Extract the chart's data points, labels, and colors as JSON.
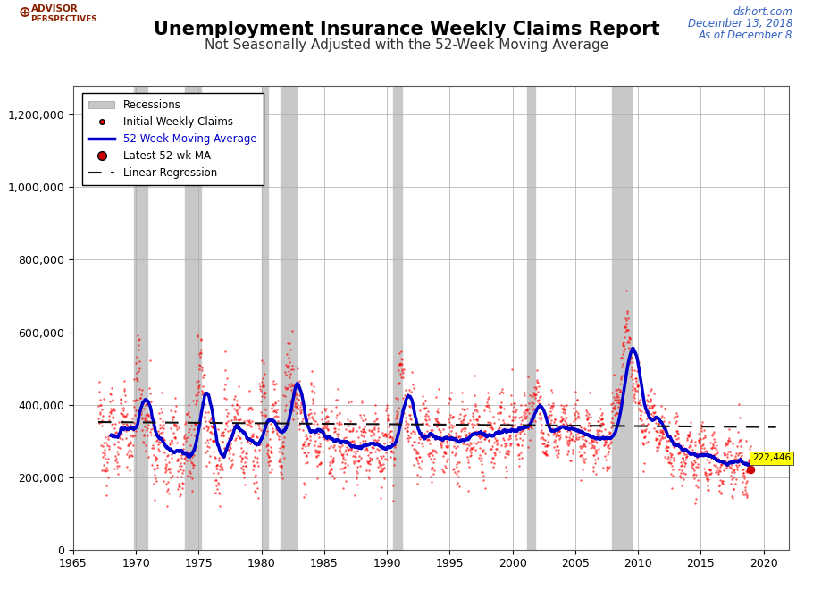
{
  "title": "Unemployment Insurance Weekly Claims Report",
  "subtitle": "Not Seasonally Adjusted with the 52-Week Moving Average",
  "top_right_line1": "dshort.com",
  "top_right_line2": "December 13, 2018",
  "top_right_line3": "As of December 8",
  "xlim": [
    1965,
    2022
  ],
  "ylim": [
    0,
    1280000
  ],
  "yticks": [
    0,
    200000,
    400000,
    600000,
    800000,
    1000000,
    1200000
  ],
  "ytick_labels": [
    "0",
    "200,000",
    "400,000",
    "600,000",
    "800,000",
    "1,000,000",
    "1,200,000"
  ],
  "xticks": [
    1965,
    1970,
    1975,
    1980,
    1985,
    1990,
    1995,
    2000,
    2005,
    2010,
    2015,
    2020
  ],
  "recession_bands": [
    [
      1969.83,
      1970.92
    ],
    [
      1973.92,
      1975.17
    ],
    [
      1980.0,
      1980.5
    ],
    [
      1981.5,
      1982.83
    ],
    [
      1990.5,
      1991.17
    ],
    [
      2001.17,
      2001.83
    ],
    [
      2007.92,
      2009.5
    ]
  ],
  "latest_value": 222446,
  "latest_year": 2018.94,
  "linear_regression_y1": 352000,
  "linear_regression_y2": 338000,
  "dot_color": "#FF0000",
  "dot_alpha": 0.65,
  "dot_size": 3,
  "ma_color": "#0000CC",
  "ma_linewidth": 2.5,
  "regression_color": "#111111",
  "recession_color": "#C8C8C8",
  "background_color": "#FFFFFF",
  "title_color": "#000000",
  "subtitle_color": "#333333",
  "top_right_color": "#3060C0",
  "latest_box_color": "#FFFF00",
  "latest_dot_color": "#CC0000",
  "grid_color": "#AAAAAA",
  "grid_linewidth": 0.5
}
